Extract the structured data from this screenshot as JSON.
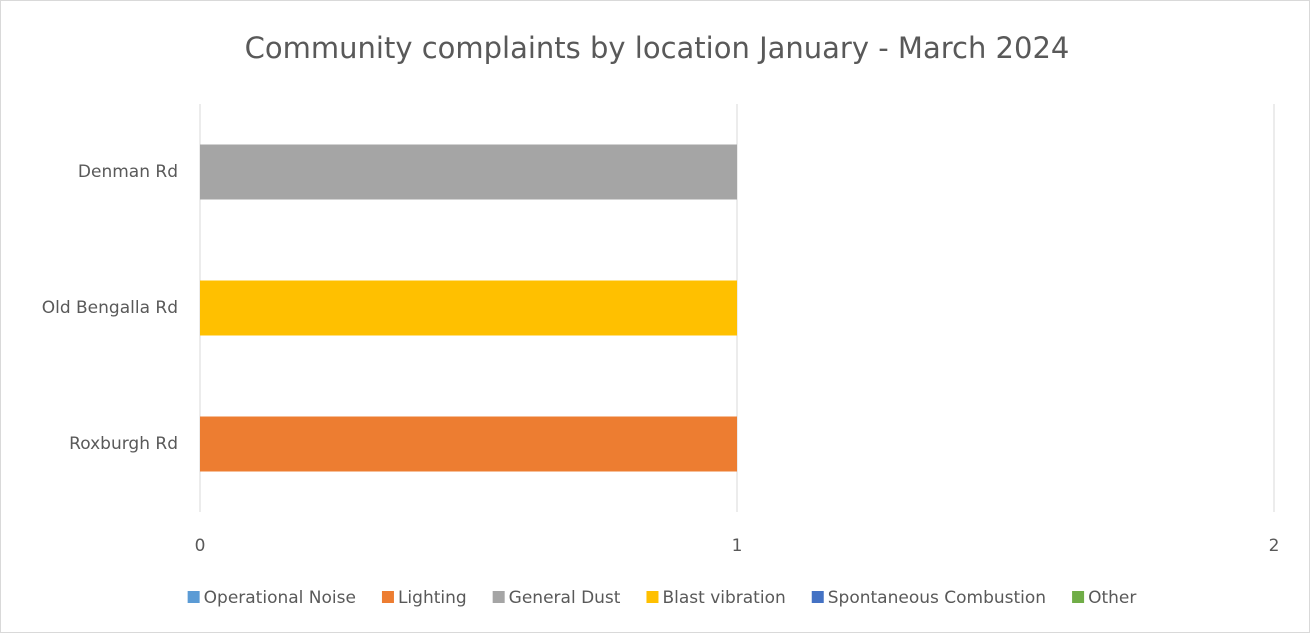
{
  "chart_data": {
    "type": "stacked-bar-horizontal",
    "title": "Community complaints by location January - March 2024",
    "categories": [
      "Denman Rd",
      "Old Bengalla Rd",
      "Roxburgh Rd"
    ],
    "series": [
      {
        "name": "Operational Noise",
        "color": "#5b9bd5",
        "values": [
          0,
          0,
          0
        ]
      },
      {
        "name": "Lighting",
        "color": "#ed7d31",
        "values": [
          0,
          0,
          1
        ]
      },
      {
        "name": "General Dust",
        "color": "#a5a5a5",
        "values": [
          1,
          0,
          0
        ]
      },
      {
        "name": "Blast vibration",
        "color": "#ffc000",
        "values": [
          0,
          1,
          0
        ]
      },
      {
        "name": "Spontaneous Combustion",
        "color": "#4472c4",
        "values": [
          0,
          0,
          0
        ]
      },
      {
        "name": "Other",
        "color": "#70ad47",
        "values": [
          0,
          0,
          0
        ]
      }
    ],
    "xlim": [
      0,
      2
    ],
    "xticks": [
      0,
      1,
      2
    ],
    "grid": true,
    "legend": "bottom"
  }
}
